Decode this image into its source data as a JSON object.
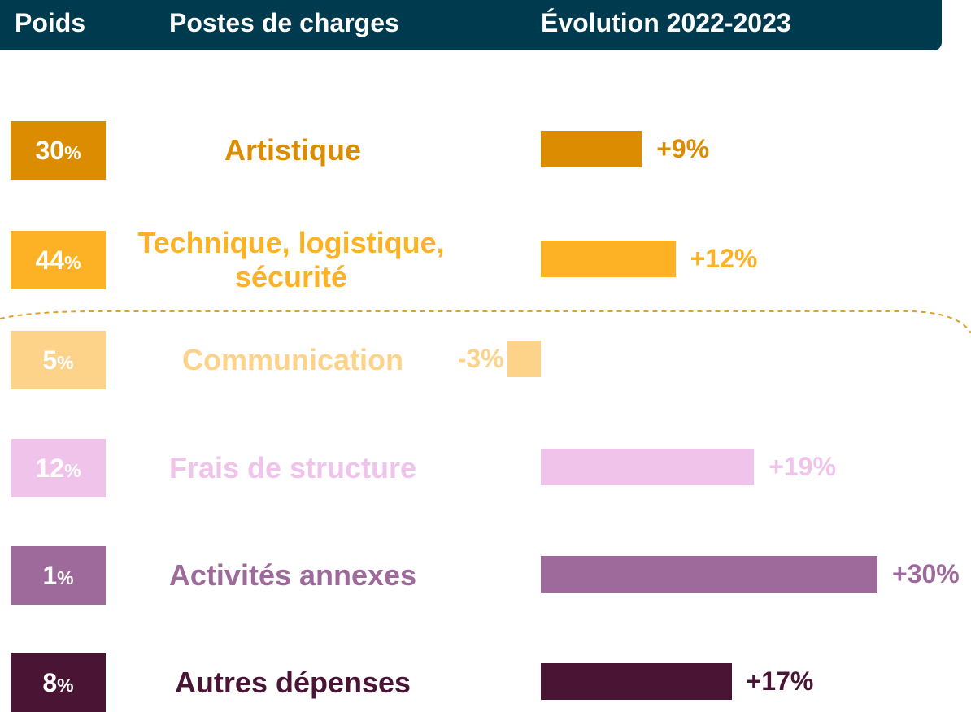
{
  "chart_data": {
    "type": "bar",
    "header": [
      "Poids",
      "Postes de charges",
      "Évolution 2022-2023"
    ],
    "categories": [
      "Artistique",
      "Technique, logistique, sécurité",
      "Communication",
      "Frais de structure",
      "Activités annexes",
      "Autres dépenses"
    ],
    "weights": [
      {
        "value": 30,
        "label": "30%"
      },
      {
        "value": 44,
        "label": "44%"
      },
      {
        "value": 5,
        "label": "5%"
      },
      {
        "value": 12,
        "label": "12%"
      },
      {
        "value": 1,
        "label": "1%"
      },
      {
        "value": 8,
        "label": "8%"
      }
    ],
    "values": [
      9,
      12,
      -3,
      19,
      30,
      17
    ],
    "value_labels": [
      "+9%",
      "+12%",
      "-3%",
      "+19%",
      "+30%",
      "+17%"
    ],
    "colors": [
      "#db8c00",
      "#fdb124",
      "#fdd38a",
      "#f0c3ea",
      "#9e6a9c",
      "#4a1535"
    ]
  }
}
